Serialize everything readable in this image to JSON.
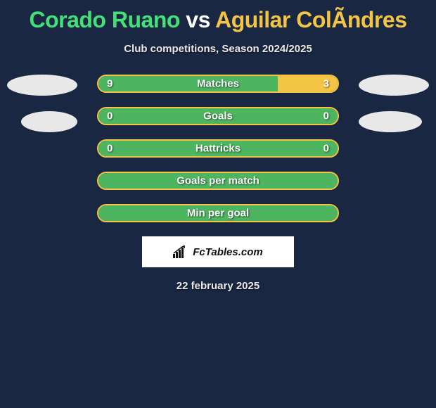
{
  "title": {
    "player1": "Corado Ruano",
    "vs": " vs ",
    "player2": "Aguilar ColÃndres",
    "player1_color": "#42e076",
    "vs_color": "#ffffff",
    "player2_color": "#f4c445"
  },
  "subtitle": "Club competitions, Season 2024/2025",
  "colors": {
    "background": "#1a2742",
    "left_fill": "#4db560",
    "right_fill": "#f4c445",
    "border": "#f4c445",
    "text": "#ffffff",
    "avatar": "#e8e8e8"
  },
  "stats": [
    {
      "label": "Matches",
      "left_value": "9",
      "right_value": "3",
      "left_pct": 75,
      "right_pct": 25,
      "show_values": true
    },
    {
      "label": "Goals",
      "left_value": "0",
      "right_value": "0",
      "left_pct": 100,
      "right_pct": 0,
      "show_values": true
    },
    {
      "label": "Hattricks",
      "left_value": "0",
      "right_value": "0",
      "left_pct": 100,
      "right_pct": 0,
      "show_values": true
    },
    {
      "label": "Goals per match",
      "left_value": "",
      "right_value": "",
      "left_pct": 100,
      "right_pct": 0,
      "show_values": false
    },
    {
      "label": "Min per goal",
      "left_value": "",
      "right_value": "",
      "left_pct": 100,
      "right_pct": 0,
      "show_values": false
    }
  ],
  "logo_text": "FcTables.com",
  "date": "22 february 2025",
  "bar_styling": {
    "border_width": 2,
    "border_radius": 13,
    "height": 26,
    "gap": 20,
    "container_width": 344
  },
  "chart_type": "horizontal-split-bar"
}
